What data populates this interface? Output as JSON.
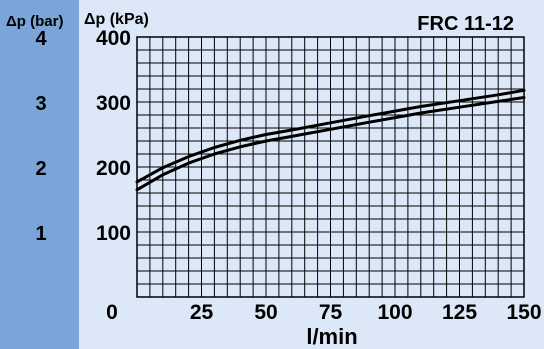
{
  "chart_data": {
    "type": "line",
    "title": "FRC 11-12",
    "ylabel_bar": "Δp (bar)",
    "ylabel_kpa": "Δp (kPa)",
    "xlabel": "l/min",
    "x_ticks": [
      0,
      25,
      50,
      75,
      100,
      125,
      150
    ],
    "y_ticks_kpa": [
      100,
      200,
      300,
      400
    ],
    "y_ticks_bar": [
      1,
      2,
      3,
      4
    ],
    "xlim": [
      0,
      150
    ],
    "ylim": [
      0,
      400
    ],
    "grid": true,
    "series": [
      {
        "x": [
          0,
          10,
          20,
          30,
          40,
          50,
          60,
          75,
          90,
          100,
          110,
          125,
          140,
          150
        ],
        "values": [
          177,
          199,
          216,
          230,
          241,
          250,
          257,
          268,
          279,
          286,
          293,
          302,
          311,
          318
        ]
      },
      {
        "x": [
          0,
          10,
          20,
          30,
          40,
          50,
          60,
          75,
          90,
          100,
          110,
          125,
          140,
          150
        ],
        "values": [
          165,
          188,
          206,
          220,
          231,
          240,
          247,
          258,
          269,
          276,
          283,
          292,
          301,
          307
        ]
      }
    ]
  },
  "colors": {
    "left_band": "#7ba4d8",
    "plot_bg": "#dce8f7",
    "grid": "#000000",
    "curve": "#000000"
  }
}
